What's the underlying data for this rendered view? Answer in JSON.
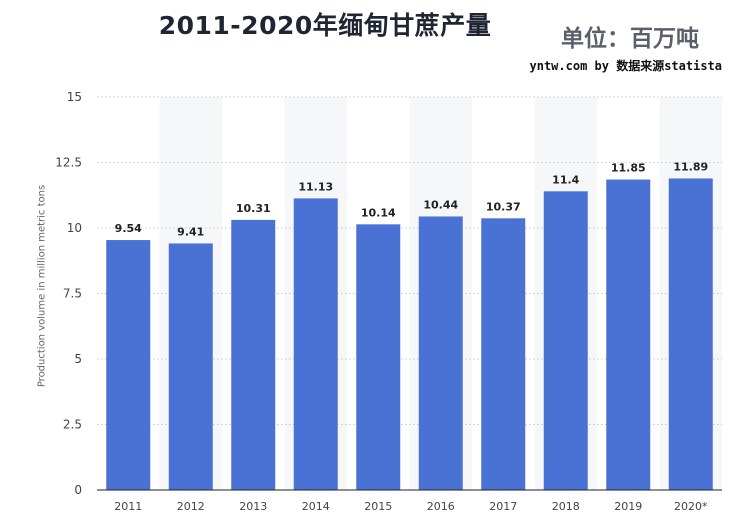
{
  "header": {
    "title": "2011-2020年缅甸甘蔗产量",
    "unit": "单位：百万吨",
    "source": "yntw.com by 数据来源statista"
  },
  "chart_data": {
    "type": "bar",
    "title": "2011-2020年缅甸甘蔗产量",
    "ylabel": "Production volume in million metric tons",
    "xlabel": "",
    "categories": [
      "2011",
      "2012",
      "2013",
      "2014",
      "2015",
      "2016",
      "2017",
      "2018",
      "2019",
      "2020*"
    ],
    "values": [
      9.54,
      9.41,
      10.31,
      11.13,
      10.14,
      10.44,
      10.37,
      11.4,
      11.85,
      11.89
    ],
    "data_labels": [
      "9.54",
      "9.41",
      "10.31",
      "11.13",
      "10.14",
      "10.44",
      "10.37",
      "11.4",
      "11.85",
      "11.89"
    ],
    "ylim": [
      0,
      15
    ],
    "yticks": [
      0,
      2.5,
      5,
      7.5,
      10,
      12.5,
      15
    ],
    "ytick_labels": [
      "0",
      "2.5",
      "5",
      "7.5",
      "10",
      "12.5",
      "15"
    ],
    "grid": true,
    "bar_color": "#4a72d4",
    "band_color": "#f6f7f9"
  }
}
